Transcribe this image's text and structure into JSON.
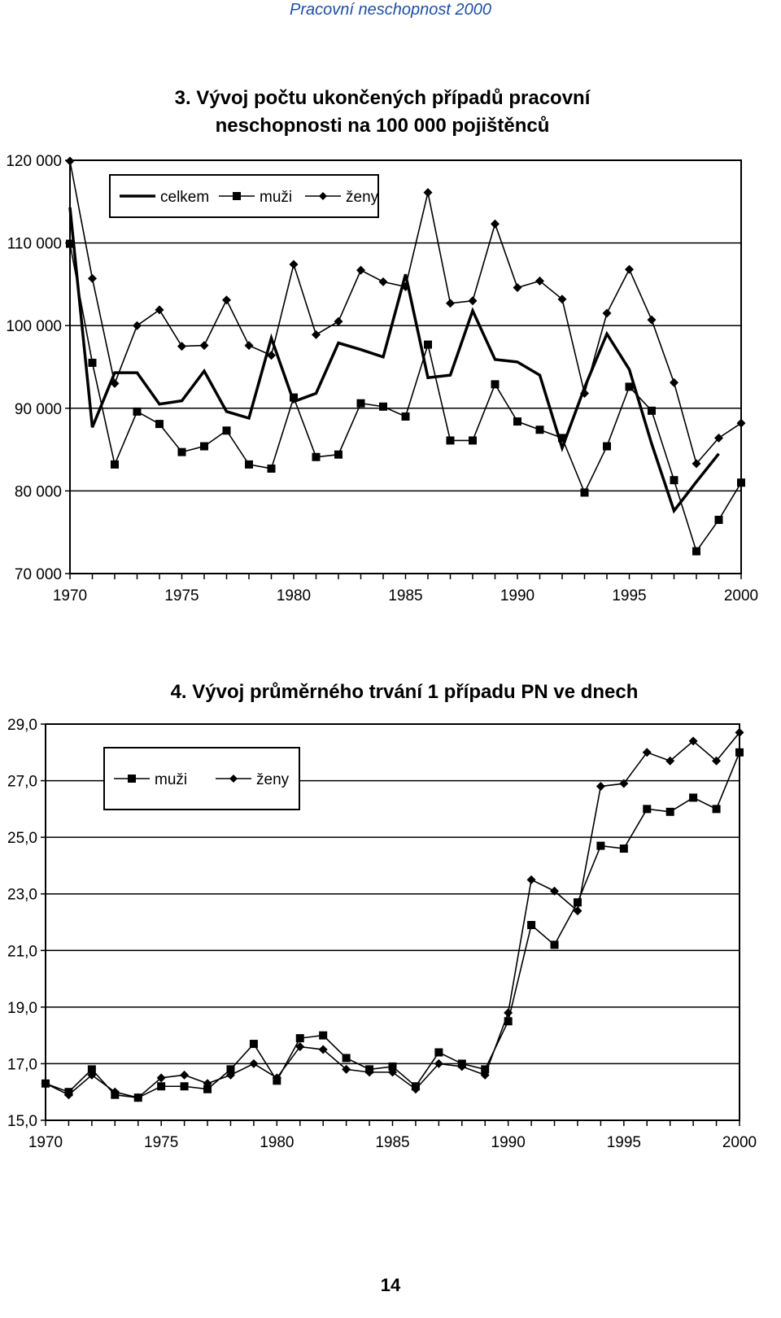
{
  "page": {
    "header": "Pracovní neschopnost 2000",
    "page_number": "14"
  },
  "chart_data": [
    {
      "type": "line",
      "title": [
        "3. Vývoj počtu ukončených případů pracovní",
        "neschopnosti na 100 000 pojištěnců"
      ],
      "x": [
        1970,
        1971,
        1972,
        1973,
        1974,
        1975,
        1976,
        1977,
        1978,
        1979,
        1980,
        1981,
        1982,
        1983,
        1984,
        1985,
        1986,
        1987,
        1988,
        1989,
        1990,
        1991,
        1992,
        1993,
        1994,
        1995,
        1996,
        1997,
        1998,
        1999,
        2000
      ],
      "xlim": [
        1970,
        2000
      ],
      "ylim": [
        70000,
        120000
      ],
      "yticks": [
        70000,
        80000,
        90000,
        100000,
        110000,
        120000
      ],
      "ytick_labels": [
        "70 000",
        "80 000",
        "90 000",
        "100 000",
        "110 000",
        "120 000"
      ],
      "xticks_labeled": [
        1970,
        1975,
        1980,
        1985,
        1990,
        1995,
        2000
      ],
      "xtick_labels": [
        "1970",
        "1975",
        "1980",
        "1985",
        "1990",
        "1995",
        "2000"
      ],
      "grid": "horizontal",
      "legend": "top-left",
      "series": [
        {
          "name": "celkem",
          "marker": "none",
          "values": [
            114300,
            87700,
            94300,
            94300,
            90500,
            90900,
            94500,
            89600,
            88800,
            98500,
            90800,
            91800,
            97900,
            97100,
            96200,
            106200,
            93700,
            94000,
            101800,
            95900,
            95600,
            94000,
            85200,
            92500,
            99000,
            94700,
            85700,
            77600,
            81100,
            84500,
            null
          ]
        },
        {
          "name": "muži",
          "marker": "square",
          "values": [
            109900,
            95500,
            83200,
            89600,
            88100,
            84700,
            85400,
            87300,
            83200,
            82700,
            91300,
            84100,
            84400,
            90600,
            90200,
            89000,
            97700,
            86100,
            86100,
            92900,
            88400,
            87400,
            86400,
            79800,
            85400,
            92600,
            89700,
            81300,
            72700,
            76500,
            81000
          ]
        },
        {
          "name": "ženy",
          "marker": "diamond",
          "values": [
            119900,
            105700,
            93000,
            100000,
            101900,
            97500,
            97600,
            103100,
            97600,
            96400,
            107400,
            98900,
            100500,
            106700,
            105300,
            104700,
            116100,
            102700,
            103000,
            112300,
            104600,
            105400,
            103200,
            91800,
            101500,
            106800,
            100700,
            93100,
            83300,
            86400,
            88200
          ]
        }
      ]
    },
    {
      "type": "line",
      "title": "4. Vývoj průměrného trvání 1 případu PN ve dnech",
      "x": [
        1970,
        1971,
        1972,
        1973,
        1974,
        1975,
        1976,
        1977,
        1978,
        1979,
        1980,
        1981,
        1982,
        1983,
        1984,
        1985,
        1986,
        1987,
        1988,
        1989,
        1990,
        1991,
        1992,
        1993,
        1994,
        1995,
        1996,
        1997,
        1998,
        1999,
        2000
      ],
      "xlim": [
        1970,
        2000
      ],
      "ylim": [
        15,
        29
      ],
      "yticks": [
        15,
        17,
        19,
        21,
        23,
        25,
        27,
        29
      ],
      "ytick_labels": [
        "15,0",
        "17,0",
        "19,0",
        "21,0",
        "23,0",
        "25,0",
        "27,0",
        "29,0"
      ],
      "xticks_labeled": [
        1970,
        1975,
        1980,
        1985,
        1990,
        1995,
        2000
      ],
      "xtick_labels": [
        "1970",
        "1975",
        "1980",
        "1985",
        "1990",
        "1995",
        "2000"
      ],
      "grid": "horizontal",
      "legend": "top-left",
      "series": [
        {
          "name": "muži",
          "marker": "square",
          "values": [
            16.3,
            16.0,
            16.8,
            15.9,
            15.8,
            16.2,
            16.2,
            16.1,
            16.8,
            17.7,
            16.4,
            17.9,
            18.0,
            17.2,
            16.8,
            16.9,
            16.2,
            17.4,
            17.0,
            16.8,
            18.5,
            21.9,
            21.2,
            22.7,
            24.7,
            24.6,
            26.0,
            25.9,
            26.4,
            26.0,
            28.0
          ]
        },
        {
          "name": "ženy",
          "marker": "diamond",
          "values": [
            16.3,
            15.9,
            16.6,
            16.0,
            15.8,
            16.5,
            16.6,
            16.3,
            16.6,
            17.0,
            16.5,
            17.6,
            17.5,
            16.8,
            16.7,
            16.7,
            16.1,
            17.0,
            16.9,
            16.6,
            18.8,
            23.5,
            23.1,
            22.4,
            26.8,
            26.9,
            28.0,
            27.7,
            28.4,
            27.7,
            28.7
          ]
        }
      ]
    }
  ]
}
